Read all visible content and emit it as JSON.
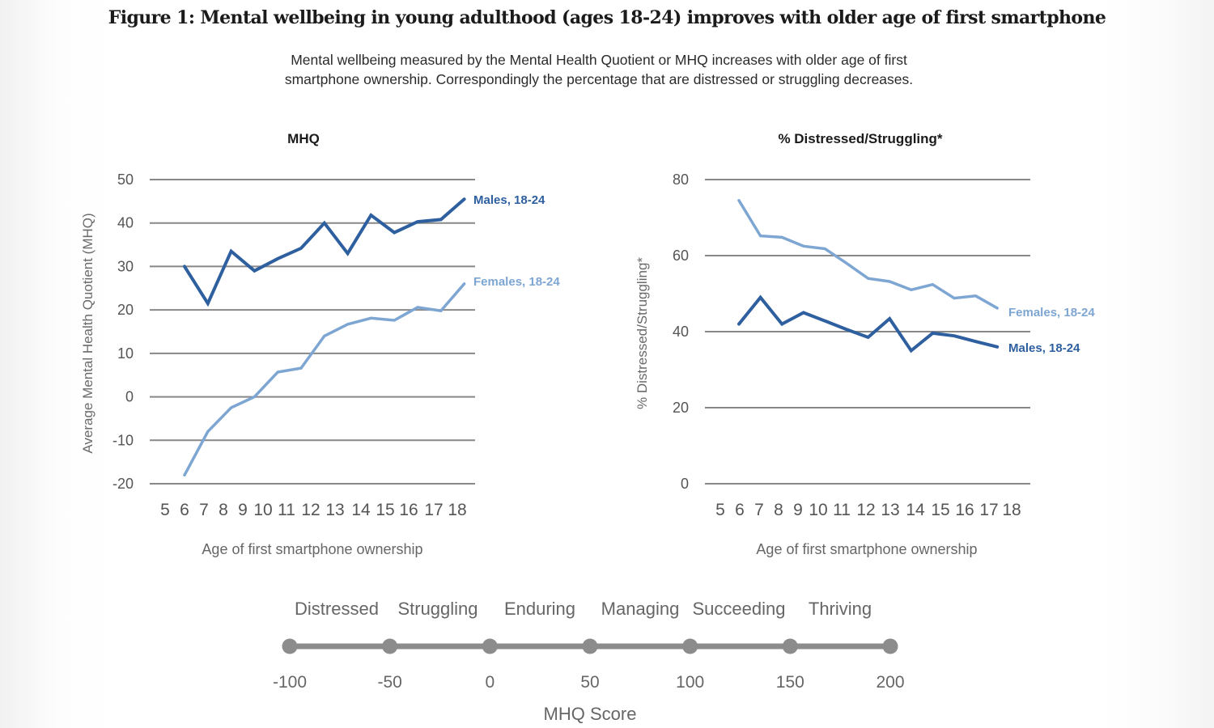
{
  "figure": {
    "title": "Figure 1:  Mental wellbeing in young adulthood (ages 18-24) improves with older age of first smartphone",
    "subtitle_line1": "Mental wellbeing measured by the Mental Health Quotient or MHQ increases with older age of first",
    "subtitle_line2": "smartphone ownership. Correspondingly the percentage that are distressed or struggling decreases."
  },
  "colors": {
    "males": "#2e5f9f",
    "females": "#7ea6d3",
    "grid": "#888888",
    "scale": "#8c8c8c"
  },
  "chart_data": [
    {
      "type": "line",
      "title": "MHQ",
      "xlabel": "Age of first smartphone ownership",
      "ylabel": "Average Mental Health Quotient (MHQ)",
      "x_tick_labels": [
        "5",
        "6",
        "7",
        "8",
        "9",
        "10",
        "11",
        "12",
        "13",
        "14",
        "15",
        "16",
        "17",
        "18"
      ],
      "x": [
        6,
        7,
        8,
        9,
        10,
        11,
        12,
        13,
        14,
        15,
        16,
        17,
        18
      ],
      "ylim": [
        -20,
        50
      ],
      "y_ticks": [
        50,
        40,
        30,
        20,
        10,
        0,
        -10,
        -20
      ],
      "grid": true,
      "legend": "inline-right",
      "series": [
        {
          "name": "Males, 18-24",
          "values": [
            30,
            21.5,
            33.5,
            29,
            31.8,
            34.2,
            40,
            33,
            41.8,
            37.8,
            40.3,
            40.8,
            45.5
          ]
        },
        {
          "name": "Females, 18-24",
          "values": [
            -18,
            -8,
            -2.5,
            0,
            5.7,
            6.6,
            14,
            16.7,
            18.1,
            17.6,
            20.6,
            19.8,
            26
          ]
        }
      ]
    },
    {
      "type": "line",
      "title": "% Distressed/Struggling*",
      "xlabel": "Age of first smartphone ownership",
      "ylabel": "% Distressed/Struggling*",
      "x_tick_labels": [
        "5",
        "6",
        "7",
        "8",
        "9",
        "10",
        "11",
        "12",
        "13",
        "14",
        "15",
        "16",
        "17",
        "18"
      ],
      "x": [
        6,
        7,
        8,
        9,
        10,
        11,
        12,
        13,
        14,
        15,
        16,
        17,
        18
      ],
      "ylim": [
        0,
        80
      ],
      "y_ticks": [
        80,
        60,
        40,
        20,
        0
      ],
      "grid": true,
      "legend": "inline-right",
      "series": [
        {
          "name": "Females, 18-24",
          "values": [
            74.5,
            65.2,
            64.8,
            62.5,
            61.8,
            58,
            54,
            53.2,
            51,
            52.4,
            48.8,
            49.4,
            46.2
          ]
        },
        {
          "name": "Males, 18-24",
          "values": [
            42,
            49,
            42,
            45,
            42.8,
            40.6,
            38.5,
            43.4,
            35,
            39.6,
            38.9,
            37.4,
            36
          ]
        }
      ]
    }
  ],
  "mhq_scale": {
    "categories": [
      "Distressed",
      "Struggling",
      "Enduring",
      "Managing",
      "Succeeding",
      "Thriving"
    ],
    "values": [
      -100,
      -50,
      0,
      50,
      100,
      150,
      200
    ],
    "label": "MHQ Score"
  }
}
